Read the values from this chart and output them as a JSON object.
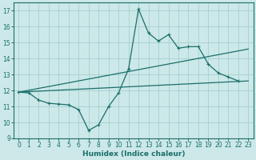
{
  "xlabel": "Humidex (Indice chaleur)",
  "background_color": "#cce8e8",
  "grid_color": "#aad4d4",
  "line_color": "#1a6e6a",
  "xlim": [
    -0.5,
    23.5
  ],
  "ylim": [
    9,
    17.5
  ],
  "yticks": [
    9,
    10,
    11,
    12,
    13,
    14,
    15,
    16,
    17
  ],
  "xticks": [
    0,
    1,
    2,
    3,
    4,
    5,
    6,
    7,
    8,
    9,
    10,
    11,
    12,
    13,
    14,
    15,
    16,
    17,
    18,
    19,
    20,
    21,
    22,
    23
  ],
  "series1_x": [
    0,
    1,
    2,
    3,
    4,
    5,
    6,
    7,
    8,
    9,
    10,
    11,
    12,
    13,
    14,
    15,
    16,
    17,
    18,
    19,
    20,
    21,
    22
  ],
  "series1_y": [
    11.9,
    11.85,
    11.4,
    11.2,
    11.15,
    11.1,
    10.8,
    9.5,
    9.85,
    11.0,
    11.85,
    13.35,
    17.1,
    15.6,
    15.1,
    15.5,
    14.65,
    14.75,
    14.75,
    13.65,
    13.1,
    12.85,
    12.6
  ],
  "series2_x": [
    0,
    23
  ],
  "series2_y": [
    11.9,
    14.6
  ],
  "series3_x": [
    0,
    23
  ],
  "series3_y": [
    11.9,
    12.6
  ]
}
